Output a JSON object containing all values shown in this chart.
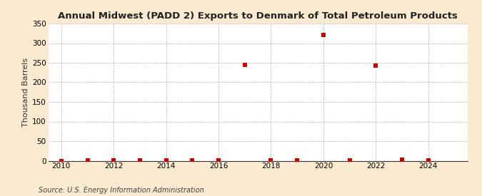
{
  "title": "Annual Midwest (PADD 2) Exports to Denmark of Total Petroleum Products",
  "ylabel": "Thousand Barrels",
  "source_text": "Source: U.S. Energy Information Administration",
  "background_color": "#faebd0",
  "plot_background_color": "#ffffff",
  "xlim": [
    2009.5,
    2025.5
  ],
  "ylim": [
    0,
    350
  ],
  "yticks": [
    0,
    50,
    100,
    150,
    200,
    250,
    300,
    350
  ],
  "xticks": [
    2010,
    2012,
    2014,
    2016,
    2018,
    2020,
    2022,
    2024
  ],
  "data_years": [
    2010,
    2011,
    2012,
    2013,
    2014,
    2015,
    2016,
    2017,
    2018,
    2019,
    2020,
    2021,
    2022,
    2023,
    2024
  ],
  "data_values": [
    0,
    1,
    1,
    1,
    1,
    1,
    1,
    244,
    1,
    1,
    321,
    1,
    243,
    2,
    1
  ],
  "marker_color": "#cc0000",
  "marker_size": 4,
  "grid_color": "#aaaaaa",
  "title_fontsize": 9.5,
  "axis_fontsize": 8,
  "tick_fontsize": 7.5,
  "source_fontsize": 7
}
